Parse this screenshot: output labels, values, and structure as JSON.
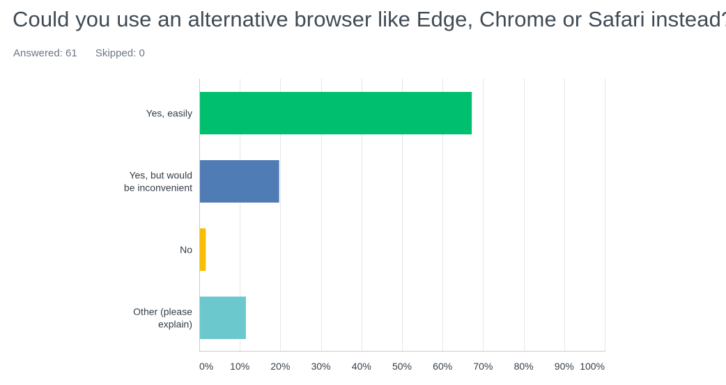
{
  "header": {
    "title": "Could you use an alternative browser like Edge, Chrome or Safari instead?",
    "answered": "Answered: 61",
    "skipped": "Skipped: 0"
  },
  "chart_data": {
    "type": "bar",
    "orientation": "horizontal",
    "title": "",
    "xlabel": "",
    "ylabel": "",
    "xlim": [
      0,
      100
    ],
    "grid": true,
    "categories": [
      [
        "Yes, easily"
      ],
      [
        "Yes, but would",
        "be inconvenient"
      ],
      [
        "No"
      ],
      [
        "Other (please",
        "explain)"
      ]
    ],
    "values": [
      67.2,
      19.7,
      1.6,
      11.5
    ],
    "colors": [
      "#00bf6f",
      "#507cb6",
      "#f9be00",
      "#6bc8cd"
    ],
    "ticks": [
      0,
      10,
      20,
      30,
      40,
      50,
      60,
      70,
      80,
      90,
      100
    ],
    "tick_labels": [
      "0%",
      "10%",
      "20%",
      "30%",
      "40%",
      "50%",
      "60%",
      "70%",
      "80%",
      "90%",
      "100%"
    ]
  }
}
